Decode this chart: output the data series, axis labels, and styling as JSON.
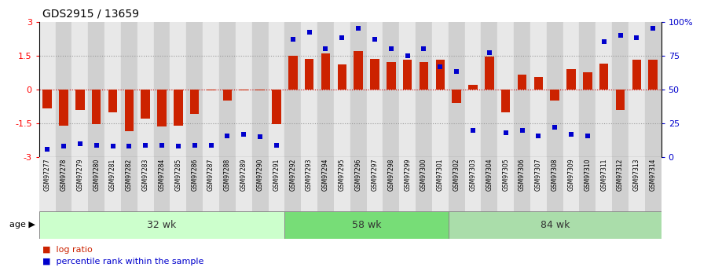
{
  "title": "GDS2915 / 13659",
  "samples": [
    "GSM97277",
    "GSM97278",
    "GSM97279",
    "GSM97280",
    "GSM97281",
    "GSM97282",
    "GSM97283",
    "GSM97284",
    "GSM97285",
    "GSM97286",
    "GSM97287",
    "GSM97288",
    "GSM97289",
    "GSM97290",
    "GSM97291",
    "GSM97292",
    "GSM97293",
    "GSM97294",
    "GSM97295",
    "GSM97296",
    "GSM97297",
    "GSM97298",
    "GSM97299",
    "GSM97300",
    "GSM97301",
    "GSM97302",
    "GSM97303",
    "GSM97304",
    "GSM97305",
    "GSM97306",
    "GSM97307",
    "GSM97308",
    "GSM97309",
    "GSM97310",
    "GSM97311",
    "GSM97312",
    "GSM97313",
    "GSM97314"
  ],
  "log_ratio": [
    -0.85,
    -1.6,
    -0.9,
    -1.55,
    -1.0,
    -1.85,
    -1.3,
    -1.65,
    -1.6,
    -1.1,
    -0.05,
    -0.5,
    -0.05,
    -0.05,
    -1.55,
    1.5,
    1.35,
    1.6,
    1.1,
    1.7,
    1.35,
    1.2,
    1.3,
    1.2,
    1.3,
    -0.6,
    0.2,
    1.45,
    -1.0,
    0.65,
    0.55,
    -0.5,
    0.9,
    0.75,
    1.15,
    -0.9,
    1.3,
    1.3
  ],
  "percentile": [
    6,
    8,
    10,
    9,
    8,
    8,
    9,
    9,
    8,
    9,
    9,
    16,
    17,
    15,
    9,
    87,
    92,
    80,
    88,
    95,
    87,
    80,
    75,
    80,
    67,
    63,
    20,
    77,
    18,
    20,
    16,
    22,
    17,
    16,
    85,
    90,
    88,
    95
  ],
  "groups": [
    {
      "label": "32 wk",
      "start": 0,
      "end": 15,
      "color": "#ccffcc"
    },
    {
      "label": "58 wk",
      "start": 15,
      "end": 25,
      "color": "#77dd77"
    },
    {
      "label": "84 wk",
      "start": 25,
      "end": 38,
      "color": "#aaddaa"
    }
  ],
  "ylim": [
    -3,
    3
  ],
  "y2lim": [
    0,
    100
  ],
  "bar_color": "#cc2200",
  "dot_color": "#0000cc",
  "hline_color": "#cc0000",
  "dotted_color": "#999999",
  "bg_color": "#ffffff",
  "xtick_colors": [
    "#e8e8e8",
    "#d0d0d0"
  ]
}
